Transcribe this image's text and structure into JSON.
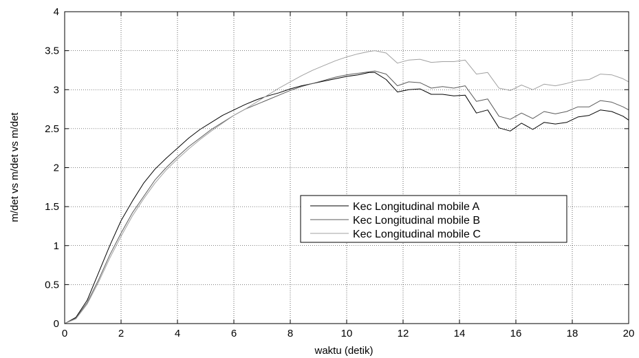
{
  "chart_data": {
    "type": "line",
    "title": "",
    "xlabel": "waktu (detik)",
    "ylabel": "m/det vs m/det vs m/det",
    "xlim": [
      0,
      20
    ],
    "ylim": [
      0,
      4
    ],
    "xticks": [
      "0",
      "2",
      "4",
      "6",
      "8",
      "10",
      "12",
      "14",
      "16",
      "18",
      "20"
    ],
    "yticks": [
      "0",
      "0.5",
      "1",
      "1.5",
      "2",
      "2.5",
      "3",
      "3.5",
      "4"
    ],
    "grid": true,
    "legend_position": "center-right",
    "series": [
      {
        "name": "Kec Longitudinal mobile A",
        "color": "#000000",
        "x": [
          0,
          0.4,
          0.8,
          1.2,
          1.6,
          2.0,
          2.4,
          2.8,
          3.2,
          3.6,
          4.0,
          4.4,
          4.8,
          5.2,
          5.6,
          6.0,
          6.4,
          6.8,
          7.2,
          7.6,
          8.0,
          8.4,
          8.8,
          9.2,
          9.6,
          10.0,
          10.4,
          10.8,
          11.0,
          11.4,
          11.8,
          12.2,
          12.6,
          13.0,
          13.4,
          13.8,
          14.2,
          14.6,
          15.0,
          15.4,
          15.8,
          16.2,
          16.6,
          17.0,
          17.4,
          17.8,
          18.2,
          18.6,
          19.0,
          19.4,
          19.8,
          20.0
        ],
        "y": [
          0.0,
          0.08,
          0.3,
          0.65,
          1.0,
          1.32,
          1.57,
          1.8,
          1.98,
          2.12,
          2.25,
          2.38,
          2.49,
          2.58,
          2.67,
          2.74,
          2.81,
          2.87,
          2.92,
          2.96,
          3.01,
          3.05,
          3.08,
          3.11,
          3.14,
          3.17,
          3.19,
          3.22,
          3.22,
          3.13,
          2.97,
          3.0,
          3.01,
          2.94,
          2.94,
          2.92,
          2.93,
          2.7,
          2.74,
          2.51,
          2.47,
          2.57,
          2.49,
          2.58,
          2.56,
          2.58,
          2.65,
          2.67,
          2.74,
          2.72,
          2.66,
          2.61
        ]
      },
      {
        "name": "Kec Longitudinal mobile B",
        "color": "#5a5a5a",
        "x": [
          0,
          0.4,
          0.8,
          1.2,
          1.6,
          2.0,
          2.4,
          2.8,
          3.2,
          3.6,
          4.0,
          4.4,
          4.8,
          5.2,
          5.6,
          6.0,
          6.4,
          6.8,
          7.2,
          7.6,
          8.0,
          8.4,
          8.8,
          9.2,
          9.6,
          10.0,
          10.4,
          10.8,
          11.0,
          11.4,
          11.8,
          12.2,
          12.6,
          13.0,
          13.4,
          13.8,
          14.2,
          14.6,
          15.0,
          15.4,
          15.8,
          16.2,
          16.6,
          17.0,
          17.4,
          17.8,
          18.2,
          18.6,
          19.0,
          19.4,
          19.8,
          20.0
        ],
        "y": [
          0.0,
          0.07,
          0.27,
          0.56,
          0.88,
          1.16,
          1.42,
          1.63,
          1.84,
          2.0,
          2.14,
          2.27,
          2.38,
          2.49,
          2.58,
          2.67,
          2.75,
          2.81,
          2.87,
          2.93,
          2.99,
          3.04,
          3.08,
          3.12,
          3.16,
          3.19,
          3.21,
          3.23,
          3.24,
          3.2,
          3.05,
          3.1,
          3.09,
          3.02,
          3.04,
          3.02,
          3.05,
          2.85,
          2.88,
          2.66,
          2.62,
          2.7,
          2.63,
          2.72,
          2.69,
          2.72,
          2.78,
          2.78,
          2.86,
          2.84,
          2.78,
          2.74
        ]
      },
      {
        "name": "Kec Longitudinal mobile C",
        "color": "#a0a0a0",
        "x": [
          0,
          0.4,
          0.8,
          1.2,
          1.6,
          2.0,
          2.4,
          2.8,
          3.2,
          3.6,
          4.0,
          4.4,
          4.8,
          5.2,
          5.6,
          6.0,
          6.4,
          6.8,
          7.2,
          7.6,
          8.0,
          8.4,
          8.8,
          9.2,
          9.6,
          10.0,
          10.4,
          10.8,
          11.0,
          11.4,
          11.8,
          12.2,
          12.6,
          13.0,
          13.4,
          13.8,
          14.2,
          14.6,
          15.0,
          15.4,
          15.8,
          16.2,
          16.6,
          17.0,
          17.4,
          17.8,
          18.2,
          18.6,
          19.0,
          19.4,
          19.8,
          20.0
        ],
        "y": [
          0.0,
          0.06,
          0.25,
          0.53,
          0.84,
          1.12,
          1.38,
          1.6,
          1.8,
          1.97,
          2.11,
          2.24,
          2.36,
          2.47,
          2.57,
          2.67,
          2.75,
          2.84,
          2.93,
          3.02,
          3.1,
          3.18,
          3.25,
          3.31,
          3.37,
          3.42,
          3.46,
          3.49,
          3.5,
          3.47,
          3.34,
          3.38,
          3.39,
          3.35,
          3.36,
          3.36,
          3.38,
          3.2,
          3.22,
          3.02,
          2.99,
          3.06,
          3.0,
          3.07,
          3.05,
          3.08,
          3.12,
          3.13,
          3.2,
          3.19,
          3.14,
          3.1
        ]
      }
    ]
  }
}
